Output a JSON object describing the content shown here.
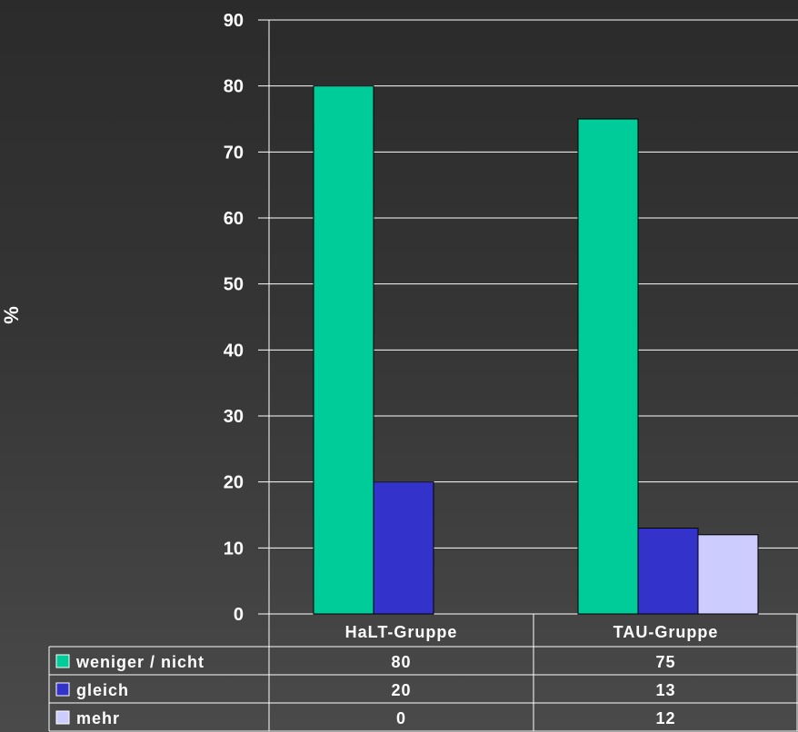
{
  "chart_data": {
    "type": "bar",
    "ylabel": "%",
    "ylim": [
      0,
      90
    ],
    "yticks": [
      0,
      10,
      20,
      30,
      40,
      50,
      60,
      70,
      80,
      90
    ],
    "categories": [
      "HaLT-Gruppe",
      "TAU-Gruppe"
    ],
    "series": [
      {
        "name": "weniger / nicht",
        "values": [
          80,
          75
        ],
        "color": "#00cc99"
      },
      {
        "name": "gleich",
        "values": [
          20,
          13
        ],
        "color": "#3333cc"
      },
      {
        "name": "mehr",
        "values": [
          0,
          12
        ],
        "color": "#ccccff"
      }
    ],
    "grid": true,
    "data_table": true,
    "legend": "in data table"
  }
}
